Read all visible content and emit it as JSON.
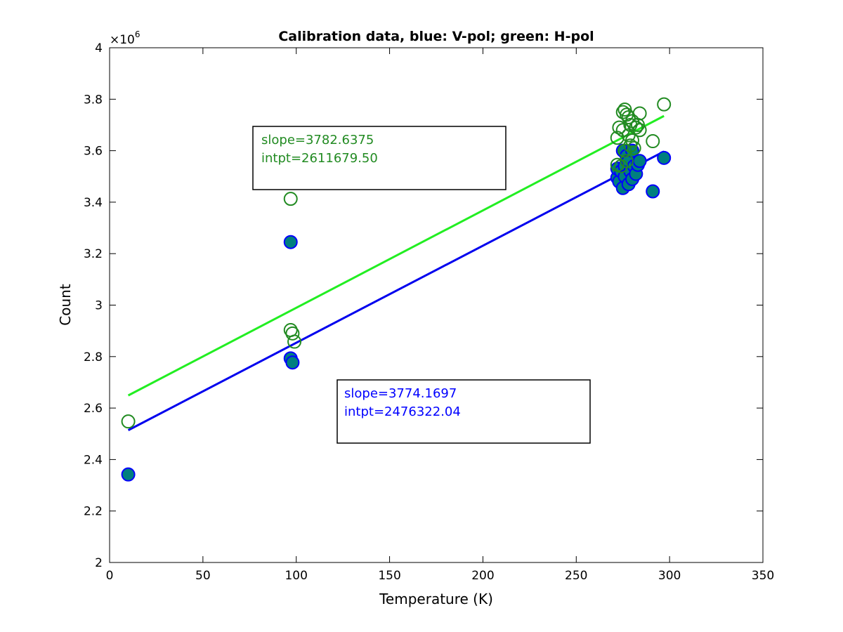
{
  "chart_data": {
    "type": "scatter",
    "title": "Calibration data, blue: V-pol; green: H-pol",
    "xlabel": "Temperature (K)",
    "ylabel": "Count",
    "xlim": [
      0,
      350
    ],
    "ylim": [
      2000000,
      4000000
    ],
    "x_ticks": [
      0,
      50,
      100,
      150,
      200,
      250,
      300,
      350
    ],
    "y_ticks": [
      2000000,
      2200000,
      2400000,
      2600000,
      2800000,
      3000000,
      3200000,
      3400000,
      3600000,
      3800000,
      4000000
    ],
    "x_tick_labels": [
      "0",
      "50",
      "100",
      "150",
      "200",
      "250",
      "300",
      "350"
    ],
    "y_tick_labels": [
      "2",
      "2.2",
      "2.4",
      "2.6",
      "2.8",
      "3",
      "3.2",
      "3.4",
      "3.6",
      "3.8",
      "4"
    ],
    "y_exponent_base": "×10",
    "y_exponent_power": "6",
    "grid": false,
    "series": [
      {
        "color": "#0000ff",
        "fill": "#007f7f",
        "marker": "filled-circle",
        "points": [
          [
            10,
            2342000
          ],
          [
            97,
            3245000
          ],
          [
            97,
            2793000
          ],
          [
            98,
            2777000
          ],
          [
            272,
            3495000
          ],
          [
            272,
            3530000
          ],
          [
            273,
            3480000
          ],
          [
            274,
            3520000
          ],
          [
            275,
            3455000
          ],
          [
            275,
            3600000
          ],
          [
            276,
            3540000
          ],
          [
            276,
            3500000
          ],
          [
            277,
            3580000
          ],
          [
            278,
            3560000
          ],
          [
            278,
            3470000
          ],
          [
            279,
            3520000
          ],
          [
            280,
            3600000
          ],
          [
            280,
            3490000
          ],
          [
            281,
            3540000
          ],
          [
            282,
            3510000
          ],
          [
            283,
            3545000
          ],
          [
            284,
            3560000
          ],
          [
            291,
            3442000
          ],
          [
            297,
            3572000
          ]
        ],
        "fit": {
          "x": [
            10,
            297
          ],
          "y": [
            2514000,
            3597000
          ]
        }
      },
      {
        "color": "#228b22",
        "fill": "none",
        "marker": "open-circle",
        "points": [
          [
            10,
            2548000
          ],
          [
            97,
            3413000
          ],
          [
            97,
            2903000
          ],
          [
            98,
            2890000
          ],
          [
            99,
            2858000
          ],
          [
            272,
            3650000
          ],
          [
            272,
            3545000
          ],
          [
            273,
            3690000
          ],
          [
            274,
            3540000
          ],
          [
            275,
            3750000
          ],
          [
            275,
            3680000
          ],
          [
            276,
            3760000
          ],
          [
            276,
            3600000
          ],
          [
            277,
            3740000
          ],
          [
            277,
            3560000
          ],
          [
            278,
            3730000
          ],
          [
            278,
            3660000
          ],
          [
            279,
            3700000
          ],
          [
            279,
            3620000
          ],
          [
            280,
            3715000
          ],
          [
            280,
            3640000
          ],
          [
            281,
            3610000
          ],
          [
            282,
            3690000
          ],
          [
            283,
            3700000
          ],
          [
            284,
            3680000
          ],
          [
            284,
            3745000
          ],
          [
            291,
            3637000
          ],
          [
            297,
            3780000
          ]
        ],
        "fit": {
          "x": [
            10,
            297
          ],
          "y": [
            2649000,
            3735000
          ]
        }
      }
    ],
    "annotations": [
      {
        "color": "#228b22",
        "lines": [
          "slope=3782.6375",
          "intpt=2611679.50"
        ]
      },
      {
        "color": "#0000ff",
        "lines": [
          "slope=3774.1697",
          "intpt=2476322.04"
        ]
      }
    ]
  }
}
